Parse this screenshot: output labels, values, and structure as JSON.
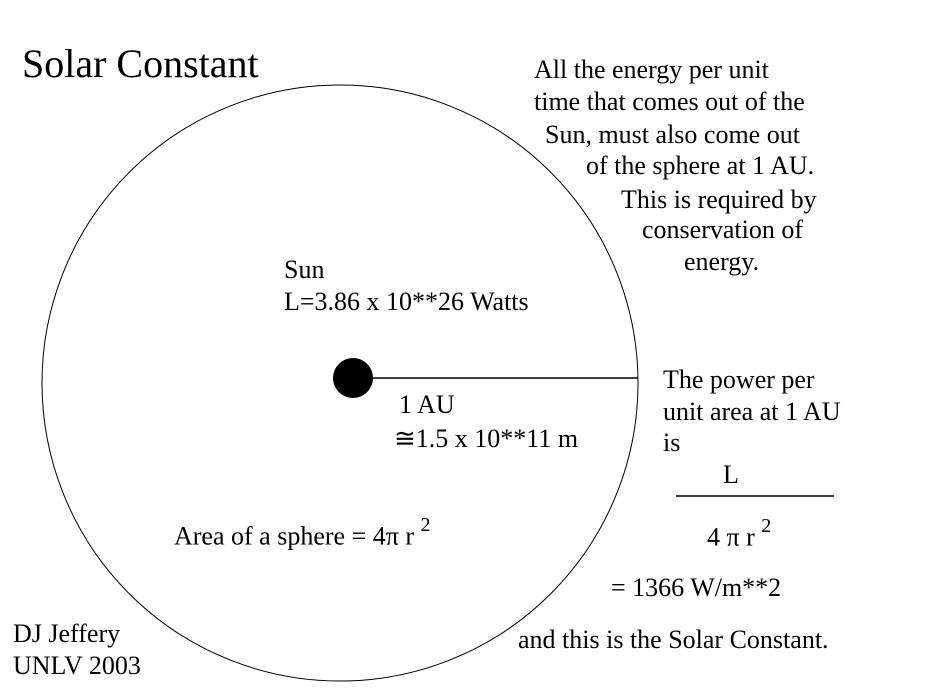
{
  "title": "Solar Constant",
  "note_lines": [
    "All the energy per unit",
    "time that comes out of the",
    "Sun,  must also come out",
    "of the sphere at 1 AU.",
    "This is required by",
    "conservation of",
    "energy."
  ],
  "sun_label": "Sun",
  "luminosity": "L=3.86 x 10**26 Watts",
  "distance_label": "1 AU",
  "distance_value": "1.5 x 10**11 m",
  "approx_symbol": "≅",
  "area_formula": "Area of a sphere =  4π r",
  "exponent": "2",
  "power_lines": [
    "The power per",
    "unit area at 1 AU",
    "is"
  ],
  "fraction_numerator": "L",
  "fraction_denominator": "4 π r",
  "result": "= 1366 W/m**2",
  "conclusion": "and this is the Solar Constant.",
  "author": "DJ Jeffery",
  "affiliation": "UNLV 2003"
}
